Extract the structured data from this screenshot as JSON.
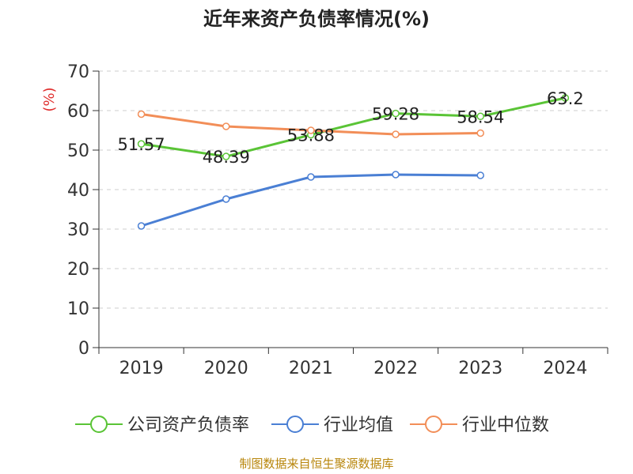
{
  "chart_data": {
    "type": "line",
    "title": "近年来资产负债率情况(%)",
    "ylabel": "(%)",
    "categories": [
      "2019",
      "2020",
      "2021",
      "2022",
      "2023",
      "2024"
    ],
    "ylim": [
      0,
      70
    ],
    "yticks": [
      0,
      10,
      20,
      30,
      40,
      50,
      60,
      70
    ],
    "grid": true,
    "legend_position": "bottom",
    "series": [
      {
        "name": "公司资产负债率",
        "color": "#5ac436",
        "values": [
          51.57,
          48.39,
          53.88,
          59.28,
          58.54,
          63.2
        ],
        "labels": [
          "51.57",
          "48.39",
          "53.88",
          "59.28",
          "58.54",
          "63.2"
        ]
      },
      {
        "name": "行业均值",
        "color": "#4a7fd4",
        "values": [
          30.8,
          37.6,
          43.2,
          43.8,
          43.6,
          null
        ]
      },
      {
        "name": "行业中位数",
        "color": "#f28e58",
        "values": [
          59.1,
          56.0,
          55.0,
          54.0,
          54.3,
          null
        ]
      }
    ]
  },
  "source": "制图数据来自恒生聚源数据库"
}
